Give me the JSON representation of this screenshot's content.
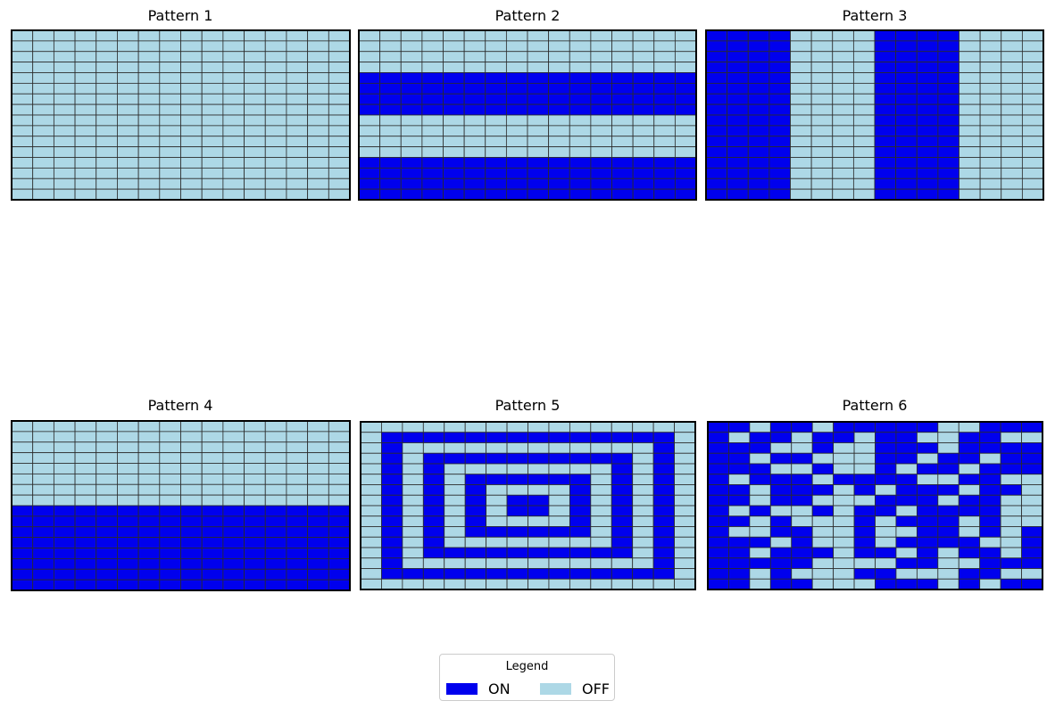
{
  "legend": {
    "title": "Legend",
    "on_label": "ON",
    "off_label": "OFF"
  },
  "colors": {
    "on": "#0000ee",
    "off": "#add8e6",
    "grid_line": "#2b2b2b",
    "border": "#000000"
  },
  "chart_data": {
    "type": "heatmap",
    "rows": 16,
    "cols": 16,
    "value_legend": {
      "1": "ON",
      "0": "OFF"
    },
    "patterns": [
      {
        "title": "Pattern 1",
        "kind": "all_off",
        "grid": [
          "0000000000000000",
          "0000000000000000",
          "0000000000000000",
          "0000000000000000",
          "0000000000000000",
          "0000000000000000",
          "0000000000000000",
          "0000000000000000",
          "0000000000000000",
          "0000000000000000",
          "0000000000000000",
          "0000000000000000",
          "0000000000000000",
          "0000000000000000",
          "0000000000000000",
          "0000000000000000"
        ]
      },
      {
        "title": "Pattern 2",
        "kind": "horizontal_stripes",
        "grid": [
          "0000000000000000",
          "0000000000000000",
          "0000000000000000",
          "0000000000000000",
          "1111111111111111",
          "1111111111111111",
          "1111111111111111",
          "1111111111111111",
          "0000000000000000",
          "0000000000000000",
          "0000000000000000",
          "0000000000000000",
          "1111111111111111",
          "1111111111111111",
          "1111111111111111",
          "1111111111111111"
        ]
      },
      {
        "title": "Pattern 3",
        "kind": "vertical_stripes",
        "grid": [
          "1111000011110000",
          "1111000011110000",
          "1111000011110000",
          "1111000011110000",
          "1111000011110000",
          "1111000011110000",
          "1111000011110000",
          "1111000011110000",
          "1111000011110000",
          "1111000011110000",
          "1111000011110000",
          "1111000011110000",
          "1111000011110000",
          "1111000011110000",
          "1111000011110000",
          "1111000011110000"
        ]
      },
      {
        "title": "Pattern 4",
        "kind": "bottom_half_on",
        "grid": [
          "0000000000000000",
          "0000000000000000",
          "0000000000000000",
          "0000000000000000",
          "0000000000000000",
          "0000000000000000",
          "0000000000000000",
          "0000000000000000",
          "1111111111111111",
          "1111111111111111",
          "1111111111111111",
          "1111111111111111",
          "1111111111111111",
          "1111111111111111",
          "1111111111111111",
          "1111111111111111"
        ]
      },
      {
        "title": "Pattern 5",
        "kind": "concentric_rectangles",
        "grid": [
          "0000000000000000",
          "0111111111111110",
          "0100000000000010",
          "0101111111111010",
          "0101000000001010",
          "0101011111101010",
          "0101010000101010",
          "0101010110101010",
          "0101010110101010",
          "0101010000101010",
          "0101011111101010",
          "0101000000001010",
          "0101111111111010",
          "0100000000000010",
          "0111111111111110",
          "0000000000000000"
        ]
      },
      {
        "title": "Pattern 6",
        "kind": "random",
        "grid": [
          "1101101111100111",
          "1011011011001100",
          "1110010011101111",
          "1101100011011011",
          "1110010010110111",
          "1011101111001100",
          "1101110101110110",
          "1101100011101100",
          "1010010110111100",
          "1101000101110100",
          "1001100100110101",
          "1110100101111001",
          "1101110110101101",
          "1111100001100111",
          "1101000110001100",
          "1101100011101011"
        ]
      }
    ]
  }
}
